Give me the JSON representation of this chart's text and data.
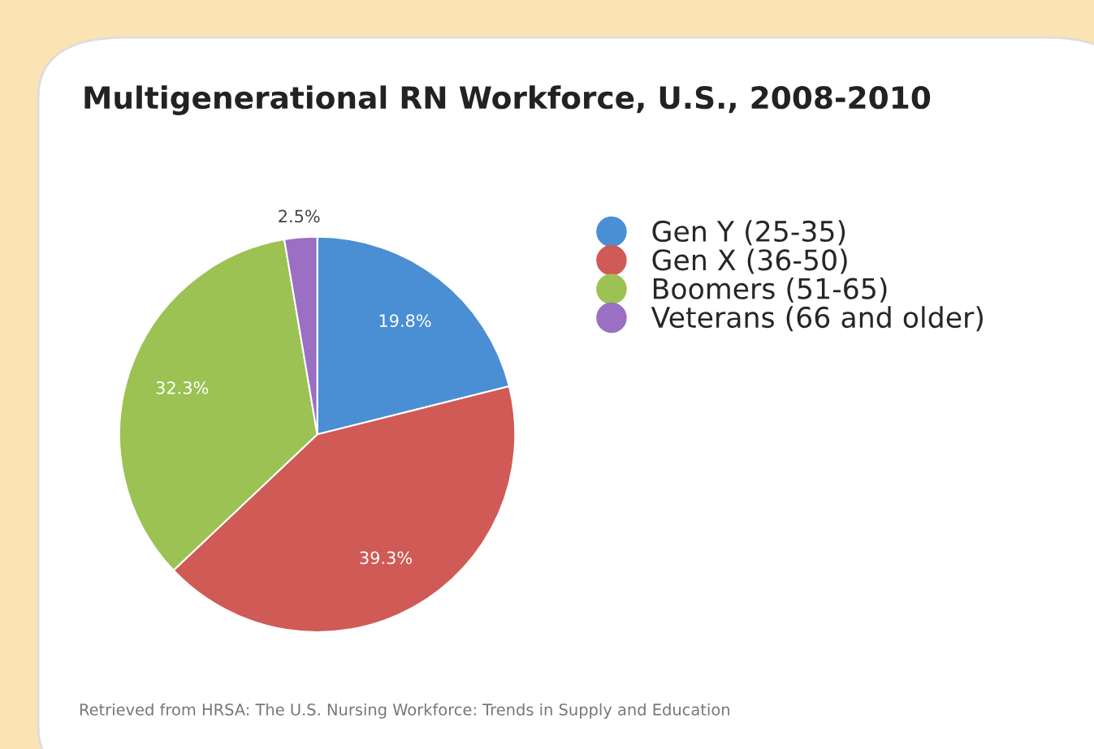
{
  "chart_data": {
    "type": "pie",
    "title": "Multigenerational RN Workforce, U.S., 2008-2010",
    "categories": [
      "Gen Y (25-35)",
      "Gen X (36-50)",
      "Boomers (51-65)",
      "Veterans (66 and older)"
    ],
    "values": [
      19.8,
      39.3,
      32.3,
      2.5
    ],
    "colors": [
      "#4a8fd4",
      "#d05a55",
      "#9bc253",
      "#9a6fc4"
    ],
    "value_labels": [
      "19.8%",
      "39.3%",
      "32.3%",
      "2.5%"
    ],
    "legend": "top right",
    "annotations": [
      "Retrieved from HRSA: The U.S. Nursing Workforce: Trends in Supply and Education"
    ]
  }
}
